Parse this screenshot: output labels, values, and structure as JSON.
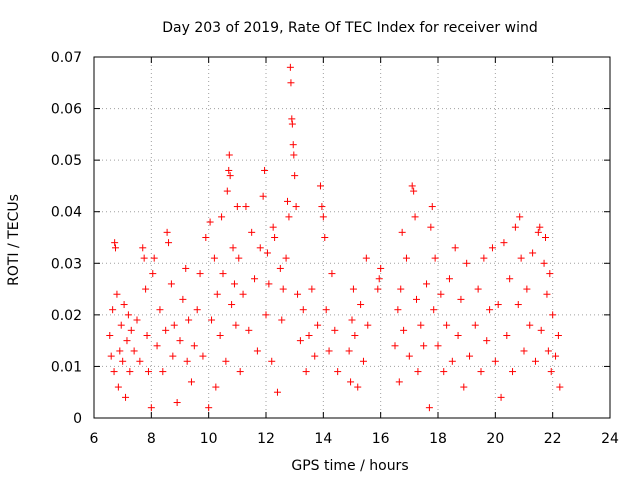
{
  "chart_data": {
    "type": "scatter",
    "title": "Day 203 of 2019, Rate Of TEC Index for receiver wind",
    "xlabel": "GPS time / hours",
    "ylabel": "ROTI / TECUs",
    "xlim": [
      6,
      24
    ],
    "ylim": [
      0,
      0.07
    ],
    "xticks": [
      6,
      8,
      10,
      12,
      14,
      16,
      18,
      20,
      22,
      24
    ],
    "yticks": [
      0,
      0.01,
      0.02,
      0.03,
      0.04,
      0.05,
      0.06,
      0.07
    ],
    "xtick_labels": [
      "6",
      "8",
      "10",
      "12",
      "14",
      "16",
      "18",
      "20",
      "22",
      "24"
    ],
    "ytick_labels": [
      "0",
      "0.01",
      "0.02",
      "0.03",
      "0.04",
      "0.05",
      "0.06",
      "0.07"
    ],
    "grid": true,
    "marker": "+",
    "marker_color": "#ff0000",
    "series": [
      {
        "name": "ROTI",
        "points": [
          [
            6.55,
            0.016
          ],
          [
            6.6,
            0.012
          ],
          [
            6.65,
            0.021
          ],
          [
            6.7,
            0.009
          ],
          [
            6.72,
            0.034
          ],
          [
            6.75,
            0.033
          ],
          [
            6.8,
            0.024
          ],
          [
            6.85,
            0.006
          ],
          [
            6.9,
            0.013
          ],
          [
            6.95,
            0.018
          ],
          [
            7.0,
            0.011
          ],
          [
            7.05,
            0.022
          ],
          [
            7.1,
            0.004
          ],
          [
            7.15,
            0.015
          ],
          [
            7.2,
            0.02
          ],
          [
            7.25,
            0.009
          ],
          [
            7.3,
            0.017
          ],
          [
            7.4,
            0.013
          ],
          [
            7.5,
            0.019
          ],
          [
            7.6,
            0.011
          ],
          [
            7.7,
            0.033
          ],
          [
            7.75,
            0.031
          ],
          [
            7.8,
            0.025
          ],
          [
            7.85,
            0.016
          ],
          [
            7.9,
            0.009
          ],
          [
            8.0,
            0.002
          ],
          [
            8.05,
            0.028
          ],
          [
            8.1,
            0.031
          ],
          [
            8.2,
            0.014
          ],
          [
            8.3,
            0.021
          ],
          [
            8.4,
            0.009
          ],
          [
            8.5,
            0.017
          ],
          [
            8.55,
            0.036
          ],
          [
            8.6,
            0.034
          ],
          [
            8.7,
            0.026
          ],
          [
            8.75,
            0.012
          ],
          [
            8.8,
            0.018
          ],
          [
            8.9,
            0.003
          ],
          [
            9.0,
            0.015
          ],
          [
            9.1,
            0.023
          ],
          [
            9.2,
            0.029
          ],
          [
            9.25,
            0.011
          ],
          [
            9.3,
            0.019
          ],
          [
            9.4,
            0.007
          ],
          [
            9.5,
            0.014
          ],
          [
            9.6,
            0.021
          ],
          [
            9.7,
            0.028
          ],
          [
            9.8,
            0.012
          ],
          [
            9.9,
            0.035
          ],
          [
            10.0,
            0.002
          ],
          [
            10.05,
            0.038
          ],
          [
            10.1,
            0.019
          ],
          [
            10.2,
            0.031
          ],
          [
            10.25,
            0.006
          ],
          [
            10.3,
            0.024
          ],
          [
            10.4,
            0.016
          ],
          [
            10.45,
            0.039
          ],
          [
            10.5,
            0.028
          ],
          [
            10.6,
            0.011
          ],
          [
            10.65,
            0.044
          ],
          [
            10.7,
            0.048
          ],
          [
            10.72,
            0.051
          ],
          [
            10.75,
            0.047
          ],
          [
            10.8,
            0.022
          ],
          [
            10.85,
            0.033
          ],
          [
            10.9,
            0.026
          ],
          [
            10.95,
            0.018
          ],
          [
            11.0,
            0.041
          ],
          [
            11.05,
            0.031
          ],
          [
            11.1,
            0.009
          ],
          [
            11.2,
            0.024
          ],
          [
            11.3,
            0.041
          ],
          [
            11.4,
            0.017
          ],
          [
            11.5,
            0.036
          ],
          [
            11.6,
            0.027
          ],
          [
            11.7,
            0.013
          ],
          [
            11.8,
            0.033
          ],
          [
            11.9,
            0.043
          ],
          [
            11.95,
            0.048
          ],
          [
            12.0,
            0.02
          ],
          [
            12.05,
            0.032
          ],
          [
            12.1,
            0.026
          ],
          [
            12.2,
            0.011
          ],
          [
            12.25,
            0.037
          ],
          [
            12.3,
            0.035
          ],
          [
            12.4,
            0.005
          ],
          [
            12.5,
            0.029
          ],
          [
            12.55,
            0.019
          ],
          [
            12.6,
            0.025
          ],
          [
            12.7,
            0.031
          ],
          [
            12.75,
            0.042
          ],
          [
            12.8,
            0.039
          ],
          [
            12.85,
            0.068
          ],
          [
            12.87,
            0.065
          ],
          [
            12.9,
            0.058
          ],
          [
            12.92,
            0.057
          ],
          [
            12.95,
            0.053
          ],
          [
            12.97,
            0.051
          ],
          [
            13.0,
            0.047
          ],
          [
            13.05,
            0.041
          ],
          [
            13.1,
            0.024
          ],
          [
            13.2,
            0.015
          ],
          [
            13.3,
            0.021
          ],
          [
            13.4,
            0.009
          ],
          [
            13.5,
            0.016
          ],
          [
            13.6,
            0.025
          ],
          [
            13.7,
            0.012
          ],
          [
            13.8,
            0.018
          ],
          [
            13.9,
            0.045
          ],
          [
            13.95,
            0.041
          ],
          [
            14.0,
            0.039
          ],
          [
            14.05,
            0.035
          ],
          [
            14.1,
            0.021
          ],
          [
            14.2,
            0.013
          ],
          [
            14.3,
            0.028
          ],
          [
            14.4,
            0.017
          ],
          [
            14.5,
            0.009
          ],
          [
            14.9,
            0.013
          ],
          [
            14.95,
            0.007
          ],
          [
            15.0,
            0.019
          ],
          [
            15.05,
            0.025
          ],
          [
            15.1,
            0.016
          ],
          [
            15.2,
            0.006
          ],
          [
            15.3,
            0.022
          ],
          [
            15.4,
            0.011
          ],
          [
            15.5,
            0.031
          ],
          [
            15.55,
            0.018
          ],
          [
            15.9,
            0.025
          ],
          [
            15.95,
            0.027
          ],
          [
            16.0,
            0.029
          ],
          [
            16.5,
            0.014
          ],
          [
            16.6,
            0.021
          ],
          [
            16.65,
            0.007
          ],
          [
            16.7,
            0.025
          ],
          [
            16.75,
            0.036
          ],
          [
            16.8,
            0.017
          ],
          [
            16.9,
            0.031
          ],
          [
            17.0,
            0.012
          ],
          [
            17.1,
            0.045
          ],
          [
            17.15,
            0.044
          ],
          [
            17.2,
            0.039
          ],
          [
            17.25,
            0.023
          ],
          [
            17.3,
            0.009
          ],
          [
            17.4,
            0.018
          ],
          [
            17.5,
            0.014
          ],
          [
            17.6,
            0.026
          ],
          [
            17.7,
            0.002
          ],
          [
            17.75,
            0.037
          ],
          [
            17.8,
            0.041
          ],
          [
            17.85,
            0.021
          ],
          [
            17.9,
            0.031
          ],
          [
            18.0,
            0.014
          ],
          [
            18.1,
            0.024
          ],
          [
            18.2,
            0.009
          ],
          [
            18.3,
            0.018
          ],
          [
            18.4,
            0.027
          ],
          [
            18.5,
            0.011
          ],
          [
            18.6,
            0.033
          ],
          [
            18.7,
            0.016
          ],
          [
            18.8,
            0.023
          ],
          [
            18.9,
            0.006
          ],
          [
            19.0,
            0.03
          ],
          [
            19.1,
            0.012
          ],
          [
            19.3,
            0.018
          ],
          [
            19.4,
            0.025
          ],
          [
            19.5,
            0.009
          ],
          [
            19.6,
            0.031
          ],
          [
            19.7,
            0.015
          ],
          [
            19.8,
            0.021
          ],
          [
            19.9,
            0.033
          ],
          [
            20.0,
            0.011
          ],
          [
            20.1,
            0.022
          ],
          [
            20.2,
            0.004
          ],
          [
            20.3,
            0.034
          ],
          [
            20.4,
            0.016
          ],
          [
            20.5,
            0.027
          ],
          [
            20.6,
            0.009
          ],
          [
            20.7,
            0.037
          ],
          [
            20.8,
            0.022
          ],
          [
            20.85,
            0.039
          ],
          [
            20.9,
            0.031
          ],
          [
            21.0,
            0.013
          ],
          [
            21.1,
            0.025
          ],
          [
            21.2,
            0.018
          ],
          [
            21.3,
            0.032
          ],
          [
            21.4,
            0.011
          ],
          [
            21.5,
            0.036
          ],
          [
            21.55,
            0.037
          ],
          [
            21.6,
            0.017
          ],
          [
            21.7,
            0.03
          ],
          [
            21.75,
            0.035
          ],
          [
            21.8,
            0.024
          ],
          [
            21.85,
            0.013
          ],
          [
            21.9,
            0.028
          ],
          [
            21.95,
            0.009
          ],
          [
            22.0,
            0.02
          ],
          [
            22.1,
            0.012
          ],
          [
            22.2,
            0.016
          ],
          [
            22.25,
            0.006
          ]
        ]
      }
    ]
  }
}
